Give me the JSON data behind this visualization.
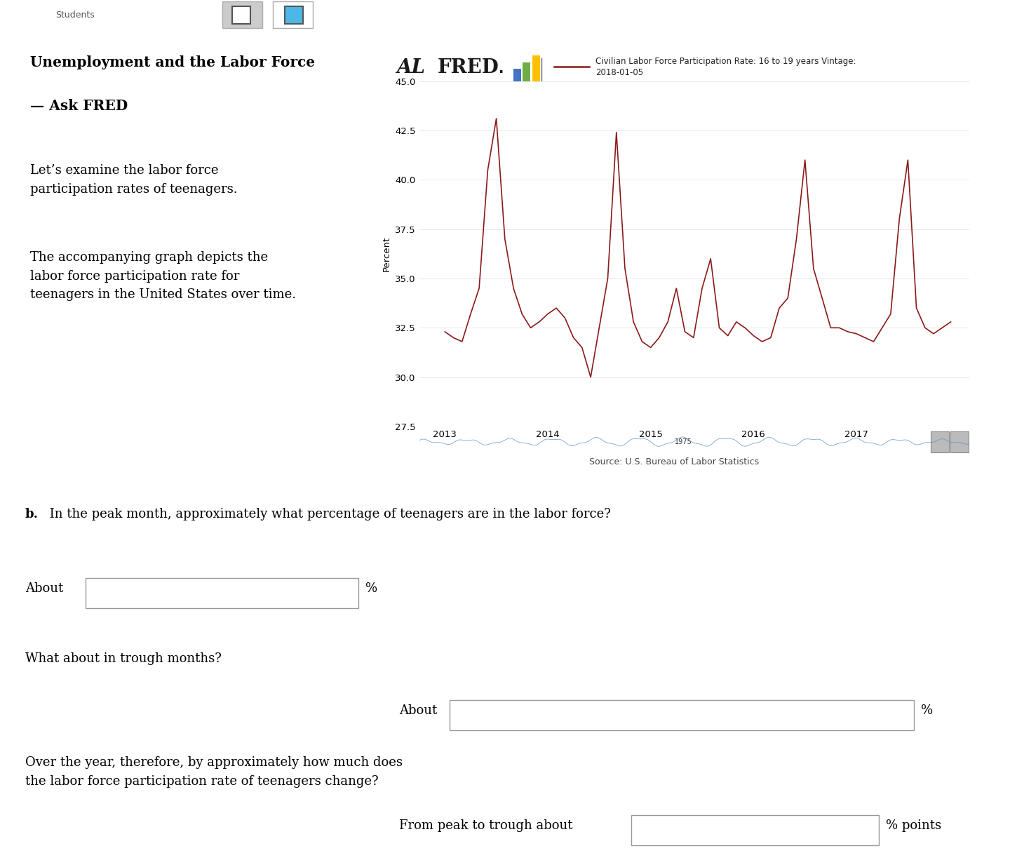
{
  "title_left_line1": "Unemployment and the Labor Force",
  "title_left_line2": "— Ask FRED",
  "desc1": "Let’s examine the labor force\nparticipation rates of teenagers.",
  "desc2": "The accompanying graph depicts the\nlabor force participation rate for\nteenagers in the United States over time.",
  "fred_legend_label_line1": "Civilian Labor Force Participation Rate: 16 to 19 years Vintage:",
  "fred_legend_label_line2": "2018-01-05",
  "ylabel": "Percent",
  "source": "Source: U.S. Bureau of Labor Statistics",
  "ylim": [
    27.5,
    45.0
  ],
  "yticks": [
    27.5,
    30.0,
    32.5,
    35.0,
    37.5,
    40.0,
    42.5,
    45.0
  ],
  "xtick_labels": [
    "2013",
    "2014",
    "2015",
    "2016",
    "2017"
  ],
  "line_color": "#8B1A1A",
  "chart_bg": "#dce6f0",
  "grid_color": "#e8e8e8",
  "plot_bg": "#ffffff",
  "q_bold_b": "b.",
  "q_text1": " In the peak month, approximately what percentage of teenagers are in the labor force?",
  "q_text2": "What about in trough months?",
  "q_text3": "Over the year, therefore, by approximately how much does\nthe labor force participation rate of teenagers change?",
  "q_label1": "About",
  "q_label2": "About",
  "q_label3": "From peak to trough about",
  "q_suffix1": "%",
  "q_suffix2": "%",
  "q_suffix3": "% points",
  "data_x": [
    2013.0,
    2013.083,
    2013.167,
    2013.25,
    2013.333,
    2013.417,
    2013.5,
    2013.583,
    2013.667,
    2013.75,
    2013.833,
    2013.917,
    2014.0,
    2014.083,
    2014.167,
    2014.25,
    2014.333,
    2014.417,
    2014.5,
    2014.583,
    2014.667,
    2014.75,
    2014.833,
    2014.917,
    2015.0,
    2015.083,
    2015.167,
    2015.25,
    2015.333,
    2015.417,
    2015.5,
    2015.583,
    2015.667,
    2015.75,
    2015.833,
    2015.917,
    2016.0,
    2016.083,
    2016.167,
    2016.25,
    2016.333,
    2016.417,
    2016.5,
    2016.583,
    2016.667,
    2016.75,
    2016.833,
    2016.917,
    2017.0,
    2017.083,
    2017.167,
    2017.25,
    2017.333,
    2017.417,
    2017.5,
    2017.583,
    2017.667,
    2017.75,
    2017.833,
    2017.917
  ],
  "data_y": [
    32.3,
    32.0,
    31.8,
    33.2,
    34.5,
    40.5,
    43.1,
    37.0,
    34.5,
    33.2,
    32.5,
    32.8,
    33.2,
    33.5,
    33.0,
    32.0,
    31.5,
    30.0,
    32.5,
    35.0,
    42.4,
    35.5,
    32.8,
    31.8,
    31.5,
    32.0,
    32.8,
    34.5,
    32.3,
    32.0,
    34.5,
    36.0,
    32.5,
    32.1,
    32.8,
    32.5,
    32.1,
    31.8,
    32.0,
    33.5,
    34.0,
    37.0,
    41.0,
    35.5,
    34.0,
    32.5,
    32.5,
    32.3,
    32.2,
    32.0,
    31.8,
    32.5,
    33.2,
    38.0,
    41.0,
    33.5,
    32.5,
    32.2,
    32.5,
    32.8
  ],
  "nav_bar_color": "#b8cfe8",
  "nav_line_color": "#5a8fbc",
  "toolbar_bg": "#f0f0f0",
  "toolbar_btn1_bg": "#cccccc",
  "toolbar_btn2_bg": "#ffffff"
}
